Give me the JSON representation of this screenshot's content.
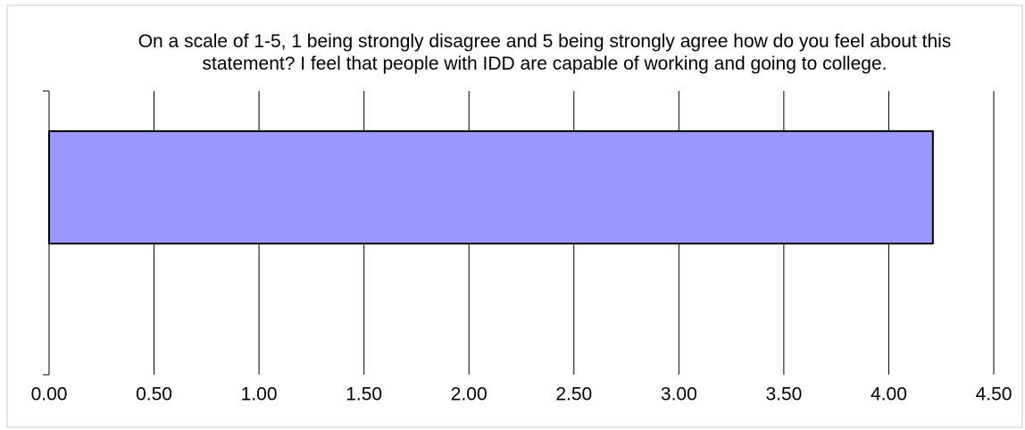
{
  "chart_data": {
    "type": "bar",
    "orientation": "horizontal",
    "title": "On a scale of 1-5, 1 being strongly disagree and 5 being strongly agree how do you feel about this statement? I feel that people with IDD are capable of working and going to college.",
    "categories": [
      null
    ],
    "values": [
      4.21
    ],
    "color": "#9999ff",
    "xlim": [
      0,
      4.5
    ],
    "xticks": [
      {
        "value": 0,
        "label": "0.00"
      },
      {
        "value": 0.5,
        "label": "0.50"
      },
      {
        "value": 1,
        "label": "1.00"
      },
      {
        "value": 1.5,
        "label": "1.50"
      },
      {
        "value": 2,
        "label": "2.00"
      },
      {
        "value": 2.5,
        "label": "2.50"
      },
      {
        "value": 3,
        "label": "3.00"
      },
      {
        "value": 3.5,
        "label": "3.50"
      },
      {
        "value": 4,
        "label": "4.00"
      },
      {
        "value": 4.5,
        "label": "4.50"
      }
    ],
    "grid": true
  }
}
